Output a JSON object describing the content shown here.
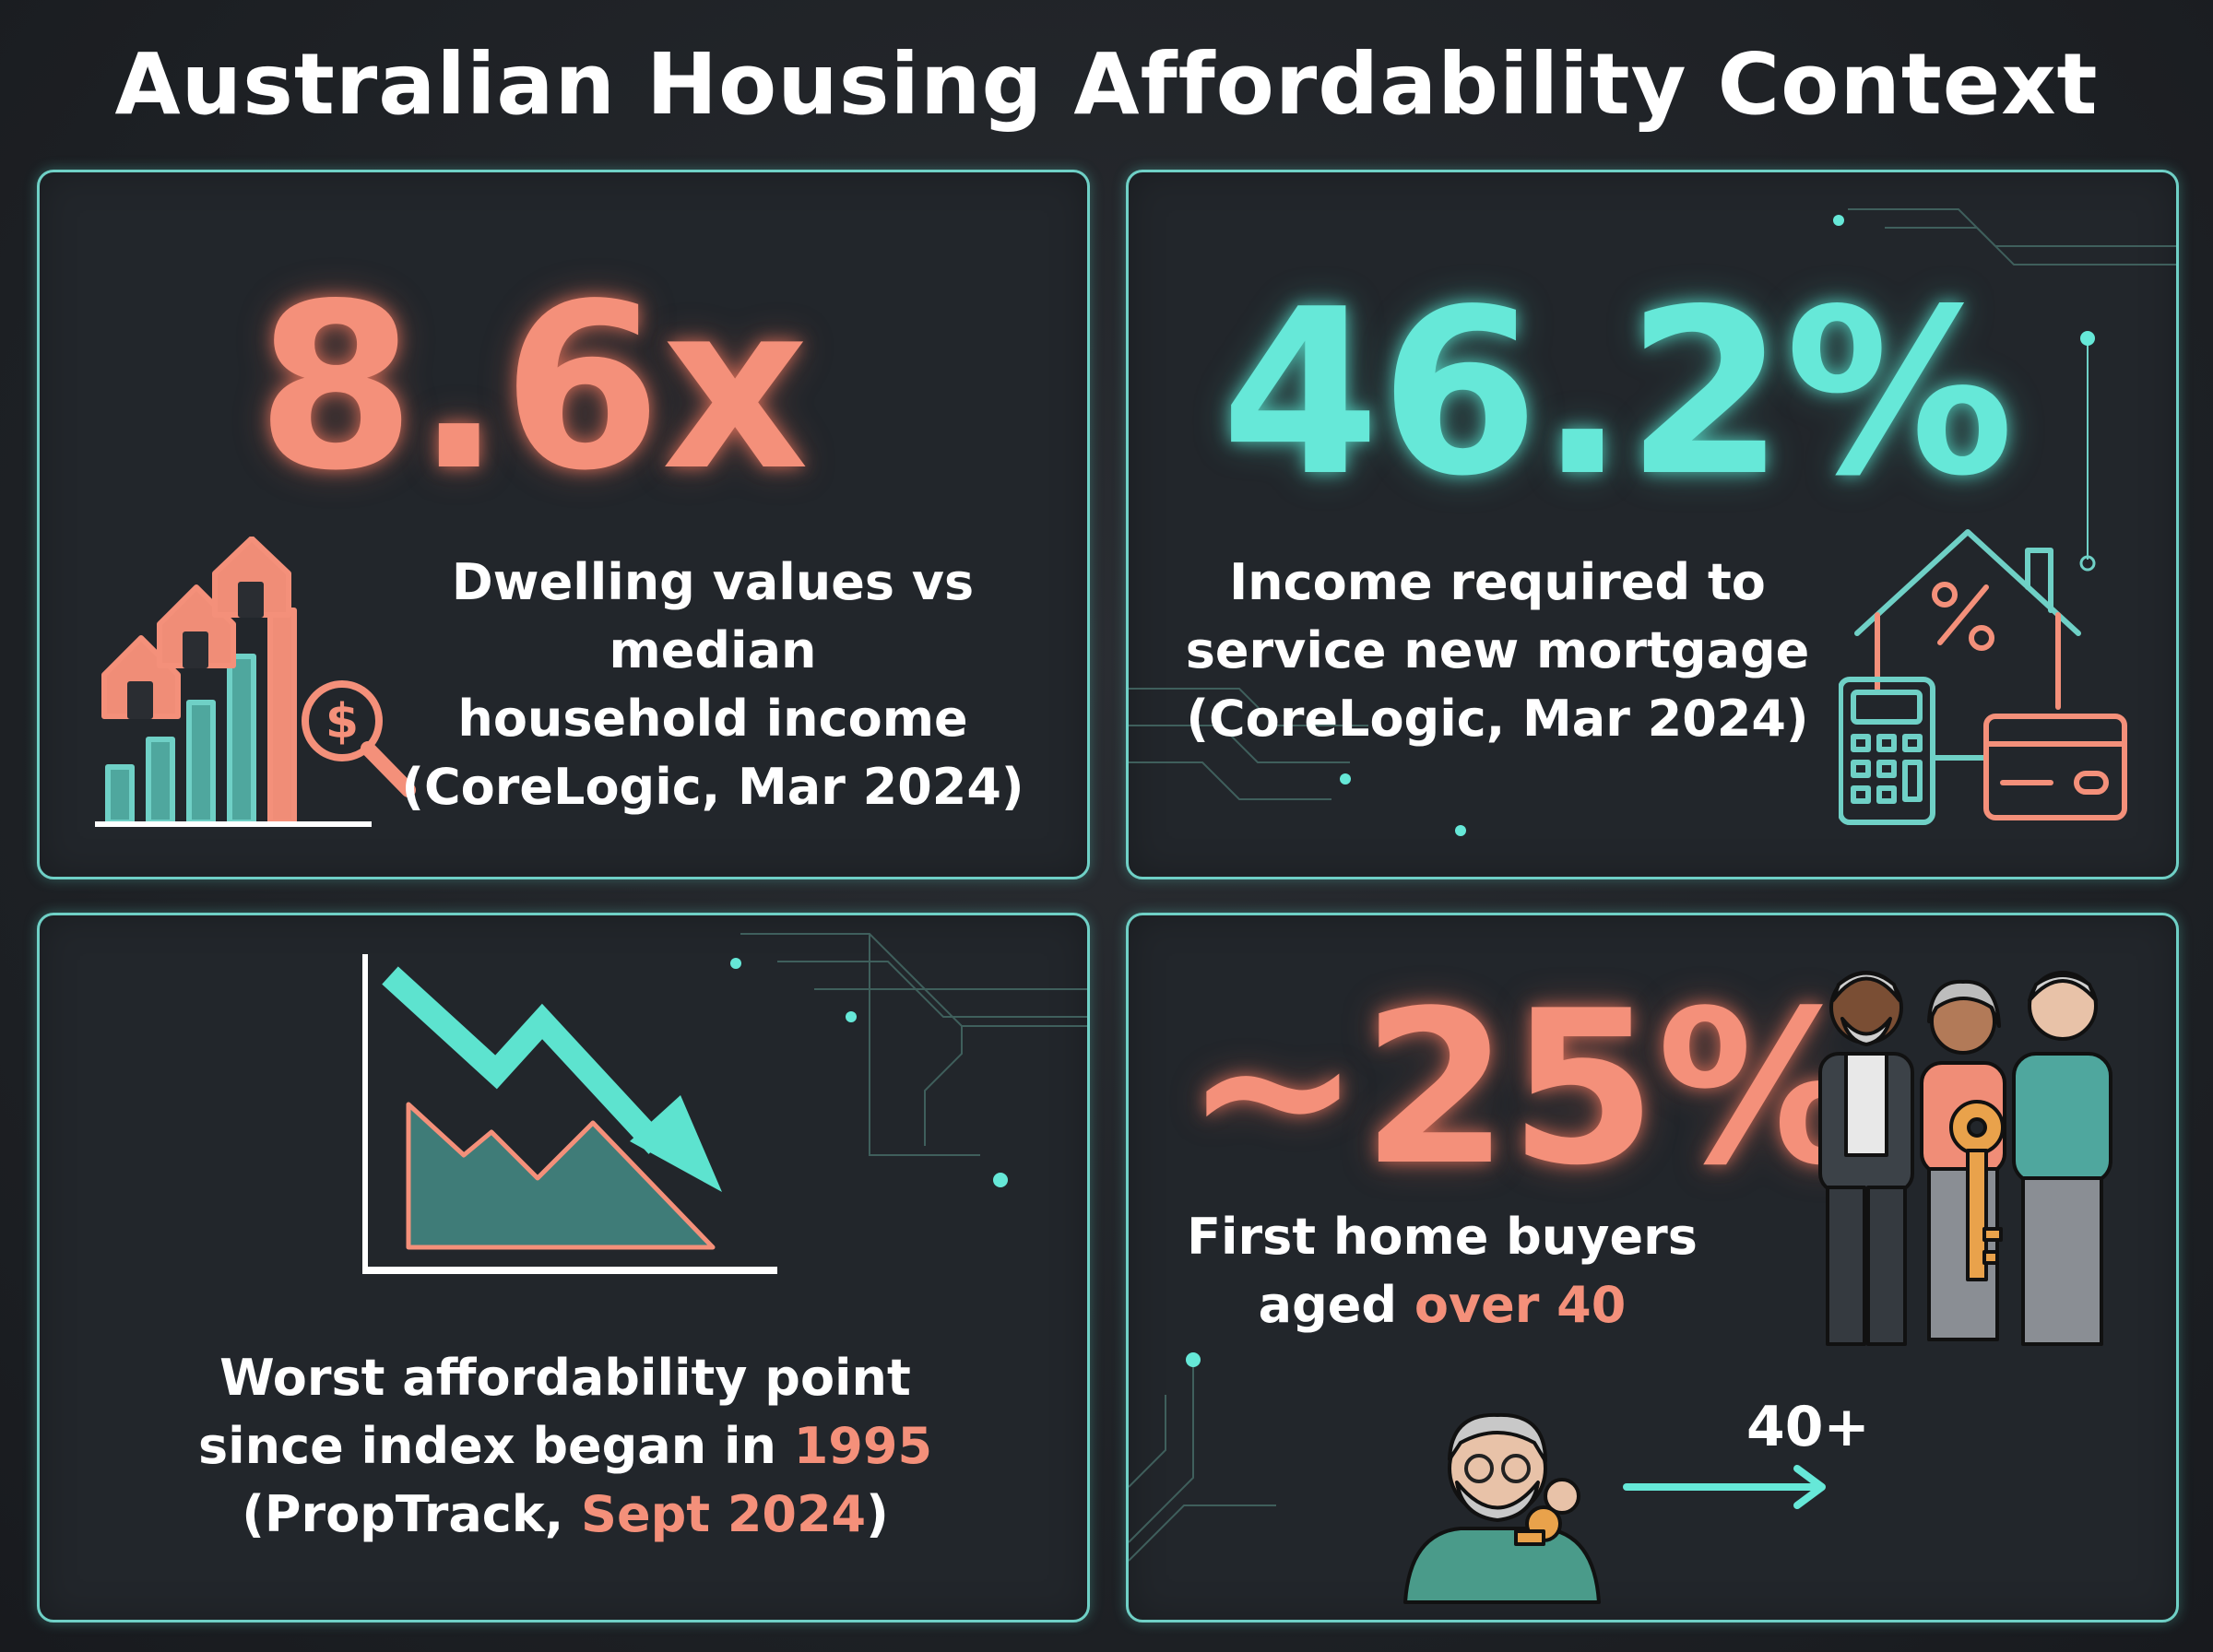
{
  "title": "Australian Housing Affordability Context",
  "colors": {
    "background": "#1d2024",
    "panel_border": "#6fd0c6",
    "coral": "#f4907a",
    "teal": "#66e8d8"
  },
  "panels": [
    {
      "value": "8.6x",
      "lines": [
        "Dwelling values vs median",
        "household income",
        "(CoreLogic, Mar 2024)"
      ],
      "icon": "houses-bar-chart-dollar-magnifier-icon"
    },
    {
      "value": "46.2%",
      "lines": [
        "Income required to",
        "service new mortgage",
        "(CoreLogic, Mar 2024)"
      ],
      "icon": "house-percent-calculator-card-icon"
    },
    {
      "lines": [
        "Worst affordability point",
        "since index began in ",
        "1995",
        "(PropTrack, ",
        "Sept 2024",
        ")"
      ],
      "icon": "declining-area-chart-arrow-icon"
    },
    {
      "value": "~25%",
      "lines": [
        "First home buyers",
        "aged ",
        "over 40"
      ],
      "age_label": "40+",
      "icon": "older-people-with-key-icon"
    }
  ]
}
